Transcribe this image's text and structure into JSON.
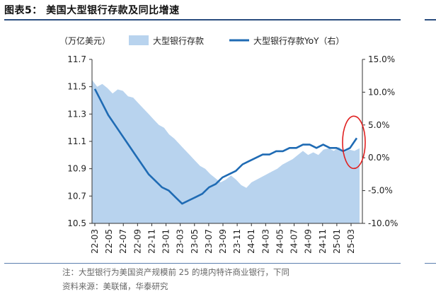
{
  "figure": {
    "title": "图表5： 美国大型银行存款及同比增速",
    "note": "注：大型银行为美国资产规模前 25 的境内特许商业银行，下同",
    "source": "资料来源：美联储，华泰研究"
  },
  "chart_data": {
    "type": "area+line",
    "unit_label": "（万亿美元）",
    "x_tick_labels": [
      "22-03",
      "22-05",
      "22-07",
      "22-09",
      "22-11",
      "23-01",
      "23-03",
      "23-05",
      "23-07",
      "23-09",
      "23-11",
      "24-01",
      "24-03",
      "24-05",
      "24-07",
      "24-09",
      "24-11",
      "25-01",
      "25-03"
    ],
    "y_left": {
      "ylim": [
        10.5,
        11.7
      ],
      "ticks": [
        "10.5",
        "10.7",
        "10.9",
        "11.1",
        "11.3",
        "11.5",
        "11.7"
      ]
    },
    "y_right": {
      "ylim": [
        -10,
        15
      ],
      "ticks": [
        "-10.0%",
        "-5.0%",
        "0.0%",
        "5.0%",
        "10.0%",
        "15.0%"
      ]
    },
    "legend_position": "top",
    "series": [
      {
        "name": "大型银行存款",
        "kind": "area",
        "axis": "left",
        "color": "#b8d3ee",
        "values": [
          11.55,
          11.5,
          11.52,
          11.49,
          11.45,
          11.48,
          11.47,
          11.43,
          11.42,
          11.38,
          11.34,
          11.3,
          11.26,
          11.22,
          11.2,
          11.15,
          11.12,
          11.08,
          11.04,
          11.0,
          10.96,
          10.92,
          10.9,
          10.86,
          10.83,
          10.8,
          10.82,
          10.85,
          10.82,
          10.78,
          10.76,
          10.8,
          10.82,
          10.84,
          10.86,
          10.88,
          10.9,
          10.93,
          10.95,
          10.97,
          11.0,
          11.03,
          11.0,
          11.02,
          11.0,
          11.04,
          11.05,
          11.03,
          11.06,
          11.02,
          11.04,
          11.03,
          11.05
        ]
      },
      {
        "name": "大型银行存款YoY（右）",
        "kind": "line",
        "axis": "right",
        "color": "#1f6bb4",
        "values": [
          10.5,
          8.5,
          6.5,
          5.0,
          3.5,
          2.0,
          0.5,
          -1.0,
          -2.5,
          -3.5,
          -4.5,
          -5.0,
          -6.0,
          -7.0,
          -6.5,
          -6.0,
          -5.5,
          -4.5,
          -4.0,
          -3.0,
          -2.5,
          -2.0,
          -1.0,
          -0.5,
          0.0,
          0.5,
          0.5,
          1.0,
          1.0,
          1.5,
          1.5,
          2.0,
          2.0,
          1.5,
          2.0,
          1.5,
          1.5,
          1.0,
          1.5,
          3.0
        ]
      }
    ],
    "highlight": {
      "kind": "ellipse",
      "color": "#e02020"
    }
  }
}
